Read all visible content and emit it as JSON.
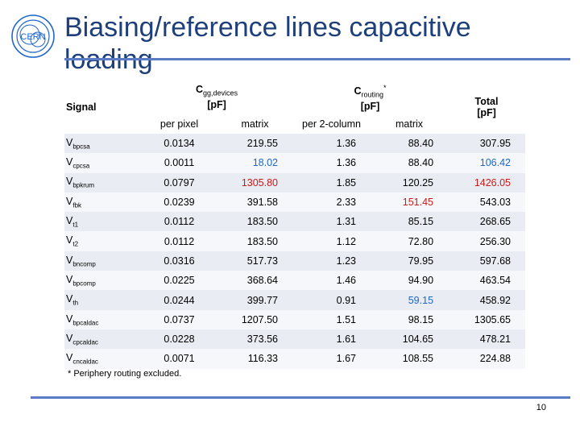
{
  "title": "Biasing/reference lines capacitive loading",
  "logo": {
    "text": "CERN",
    "color": "#1f66c8"
  },
  "accent_color": "#5b7cc4",
  "table": {
    "signal_header": "Signal",
    "group1": {
      "main": "C",
      "sub": "gg,devices",
      "unit": "[pF]"
    },
    "group2": {
      "main": "C",
      "sub": "routing",
      "sup": "*",
      "unit": "[pF]"
    },
    "total_header": "Total",
    "total_unit": "[pF]",
    "subheaders": [
      "per pixel",
      "matrix",
      "per 2-column",
      "matrix"
    ],
    "rows": [
      {
        "sig_main": "V",
        "sig_sub": "bpcsa",
        "per_pixel": "0.0134",
        "matrix1": "219.55",
        "per_2col": "1.36",
        "matrix2": "88.40",
        "total": "307.95"
      },
      {
        "sig_main": "V",
        "sig_sub": "cpcsa",
        "per_pixel": "0.0011",
        "matrix1": "18.02",
        "per_2col": "1.36",
        "matrix2": "88.40",
        "total": "106.42"
      },
      {
        "sig_main": "V",
        "sig_sub": "bpkrum",
        "per_pixel": "0.0797",
        "matrix1": "1305.80",
        "per_2col": "1.85",
        "matrix2": "120.25",
        "total": "1426.05"
      },
      {
        "sig_main": "V",
        "sig_sub": "fbk",
        "per_pixel": "0.0239",
        "matrix1": "391.58",
        "per_2col": "2.33",
        "matrix2": "151.45",
        "total": "543.03"
      },
      {
        "sig_main": "V",
        "sig_sub": "t1",
        "per_pixel": "0.0112",
        "matrix1": "183.50",
        "per_2col": "1.31",
        "matrix2": "85.15",
        "total": "268.65"
      },
      {
        "sig_main": "V",
        "sig_sub": "t2",
        "per_pixel": "0.0112",
        "matrix1": "183.50",
        "per_2col": "1.12",
        "matrix2": "72.80",
        "total": "256.30"
      },
      {
        "sig_main": "V",
        "sig_sub": "bncomp",
        "per_pixel": "0.0316",
        "matrix1": "517.73",
        "per_2col": "1.23",
        "matrix2": "79.95",
        "total": "597.68"
      },
      {
        "sig_main": "V",
        "sig_sub": "bpcomp",
        "per_pixel": "0.0225",
        "matrix1": "368.64",
        "per_2col": "1.46",
        "matrix2": "94.90",
        "total": "463.54"
      },
      {
        "sig_main": "V",
        "sig_sub": "th",
        "per_pixel": "0.0244",
        "matrix1": "399.77",
        "per_2col": "0.91",
        "matrix2": "59.15",
        "total": "458.92"
      },
      {
        "sig_main": "V",
        "sig_sub": "bpcaldac",
        "per_pixel": "0.0737",
        "matrix1": "1207.50",
        "per_2col": "1.51",
        "matrix2": "98.15",
        "total": "1305.65"
      },
      {
        "sig_main": "V",
        "sig_sub": "cpcaldac",
        "per_pixel": "0.0228",
        "matrix1": "373.56",
        "per_2col": "1.61",
        "matrix2": "104.65",
        "total": "478.21"
      },
      {
        "sig_main": "V",
        "sig_sub": "cncaldac",
        "per_pixel": "0.0071",
        "matrix1": "116.33",
        "per_2col": "1.67",
        "matrix2": "108.55",
        "total": "224.88"
      }
    ]
  },
  "footnote": "* Periphery routing excluded.",
  "page_number": "10"
}
